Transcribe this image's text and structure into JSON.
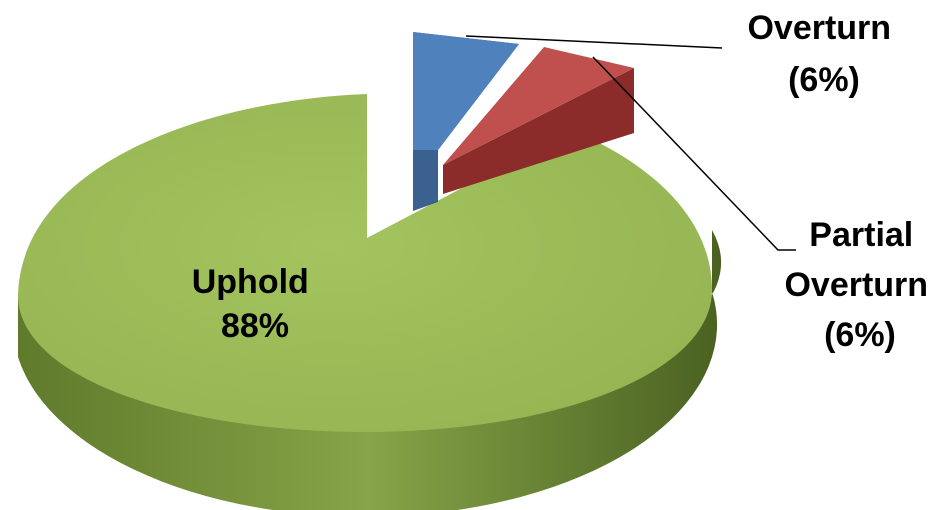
{
  "chart_data": {
    "type": "pie",
    "style": "3d-exploded",
    "slices": [
      {
        "label": "Uphold",
        "value": 88,
        "value_text": "88%",
        "color": "#9bbb59"
      },
      {
        "label": "Overturn",
        "value": 6,
        "value_text": "(6%)",
        "color": "#4f81bd"
      },
      {
        "label": "Partial Overturn",
        "value": 6,
        "value_text": "(6%)",
        "color": "#c0504d"
      }
    ],
    "labels": {
      "uphold": [
        "Uphold",
        "88%"
      ],
      "overturn": [
        "Overturn",
        "(6%)"
      ],
      "partial_overturn": [
        "Partial",
        "Overturn",
        "(6%)"
      ]
    },
    "legend": "none"
  }
}
